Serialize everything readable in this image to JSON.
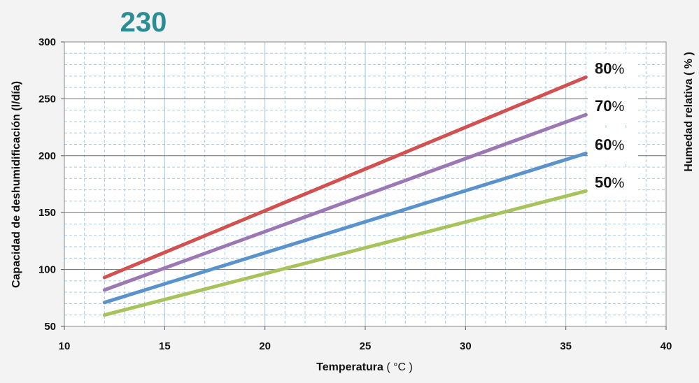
{
  "chart_data": {
    "type": "line",
    "title": "230",
    "title_color": "#2b8d94",
    "xlabel": "Temperatura",
    "xlabel_unit": "( °C )",
    "ylabel": "Capacidad de deshumidificación (l/día)",
    "y2label": "Humedad relativa ( % )",
    "xlim": [
      10,
      40
    ],
    "ylim": [
      50,
      300
    ],
    "x_ticks": [
      "10",
      "15",
      "20",
      "25",
      "30",
      "35",
      "40"
    ],
    "y_ticks": [
      "50",
      "100",
      "150",
      "200",
      "250",
      "300"
    ],
    "grid": true,
    "legend": "inline labels at right end of lines",
    "series": [
      {
        "name": "80%",
        "number": "80",
        "unit": "%",
        "color": "#d0514f",
        "x": [
          12,
          36
        ],
        "y": [
          93,
          269
        ]
      },
      {
        "name": "70%",
        "number": "70",
        "unit": "%",
        "color": "#9b77b3",
        "x": [
          12,
          36
        ],
        "y": [
          82,
          236
        ]
      },
      {
        "name": "60%",
        "number": "60",
        "unit": "%",
        "color": "#5a93cc",
        "x": [
          12,
          36
        ],
        "y": [
          71,
          202
        ]
      },
      {
        "name": "50%",
        "number": "50",
        "unit": "%",
        "color": "#a8c25c",
        "x": [
          12,
          36
        ],
        "y": [
          60,
          169
        ]
      }
    ]
  }
}
